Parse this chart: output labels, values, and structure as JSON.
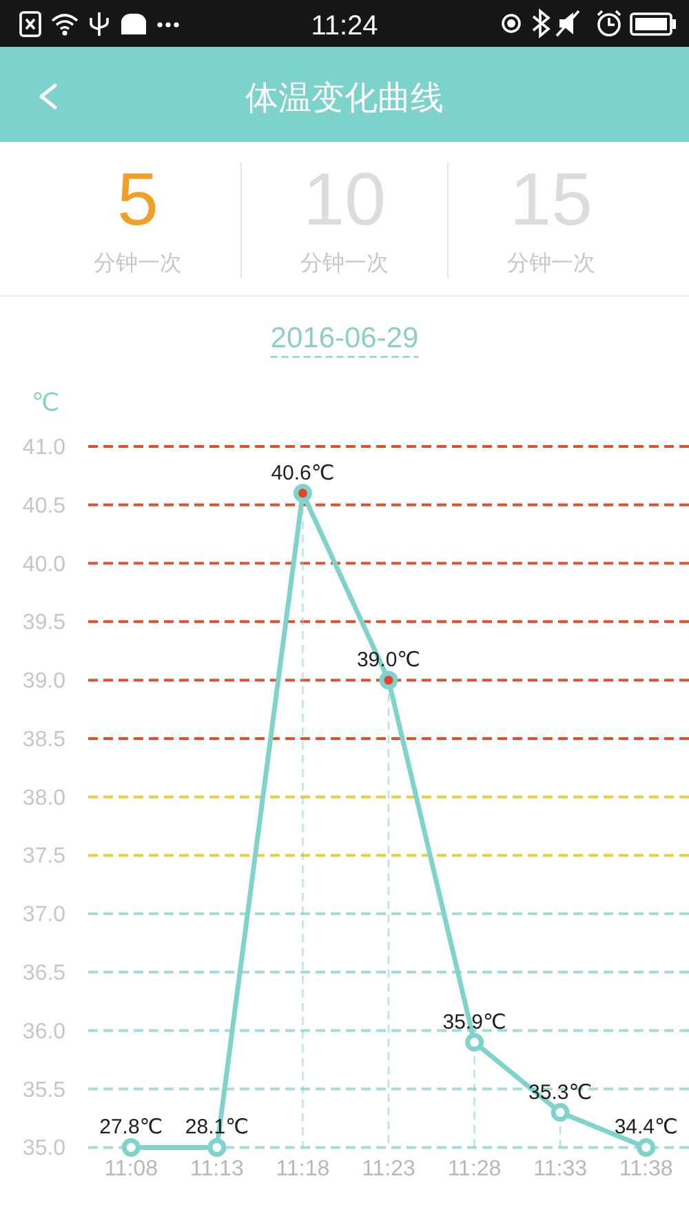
{
  "chart_data": {
    "type": "line",
    "title": "体温变化曲线",
    "subtitle": "2016-06-29",
    "ylabel": "℃",
    "categories": [
      "11:08",
      "11:13",
      "11:18",
      "11:23",
      "11:28",
      "11:33",
      "11:38"
    ],
    "series": [
      {
        "color": "#7fd3ca",
        "marker": "none",
        "values": [
          35.0,
          35.0,
          40.6,
          39.0,
          35.9,
          35.3,
          35.0
        ]
      },
      {
        "type": "lollipop",
        "color": "#7fd3ca",
        "line_style": "dashed",
        "colors": [
          "#ffffff",
          "#ffffff",
          "#e2452a",
          "#e2452a",
          "#ffffff",
          "#ffffff",
          "#ffffff"
        ],
        "values": [
          35.0,
          35.0,
          40.6,
          39.0,
          35.9,
          35.3,
          35.0
        ],
        "value_labels": [
          null,
          null,
          "40.6℃",
          "39.0℃",
          "35.9℃",
          "35.3℃",
          null
        ]
      }
    ],
    "ylim": [
      35,
      41
    ],
    "yticks": [
      {
        "value": 35,
        "label": "35.0"
      },
      35.5,
      {
        "value": 36,
        "label": "36.0"
      },
      36.5,
      {
        "value": 37,
        "label": "37.0"
      },
      37.5,
      {
        "value": 38,
        "label": "38.0"
      },
      38.5,
      {
        "value": 39,
        "label": "39.0"
      },
      39.5,
      {
        "value": 40,
        "label": "40.0"
      },
      40.5,
      {
        "value": 41,
        "label": "41.0"
      }
    ],
    "ref_lines": [
      {
        "axis": "y",
        "value": 35.5,
        "color": "#a3dcd6",
        "line_style": "dashed"
      },
      {
        "axis": "y",
        "value": 36,
        "color": "#a3dcd6",
        "line_style": "dashed"
      },
      {
        "axis": "y",
        "value": 36.5,
        "color": "#a3dcd6",
        "line_style": "dashed"
      },
      {
        "axis": "y",
        "value": 37,
        "color": "#a3dcd6",
        "line_style": "dashed"
      },
      {
        "axis": "y",
        "value": 37.5,
        "color": "#e8cd3c",
        "line_style": "dashed"
      },
      {
        "axis": "y",
        "value": 38,
        "color": "#e8cd3c",
        "line_style": "dashed"
      },
      {
        "axis": "y",
        "value": 38.5,
        "color": "#e0512c",
        "line_style": "dashed"
      },
      {
        "axis": "y",
        "value": 39,
        "color": "#e0512c",
        "line_style": "dashed"
      },
      {
        "axis": "y",
        "value": 39.5,
        "color": "#e0512c",
        "line_style": "dashed"
      },
      {
        "axis": "y",
        "value": 40,
        "color": "#e0512c",
        "line_style": "dashed"
      },
      {
        "axis": "y",
        "value": 40.5,
        "color": "#e0512c",
        "line_style": "dashed"
      }
    ],
    "marker": "circle",
    "line_style": "solid",
    "annotations": [
      "11:24",
      "5",
      "分钟一次",
      "10",
      "分钟一次",
      "15",
      "分钟一次",
      {
        "text": "27.8℃",
        "x": "11:08",
        "y": 35.0
      },
      {
        "text": "28.1℃",
        "x": "11:13",
        "y": 35.0
      },
      {
        "text": "34.4℃",
        "x": "11:38",
        "y": 35.0
      }
    ]
  }
}
